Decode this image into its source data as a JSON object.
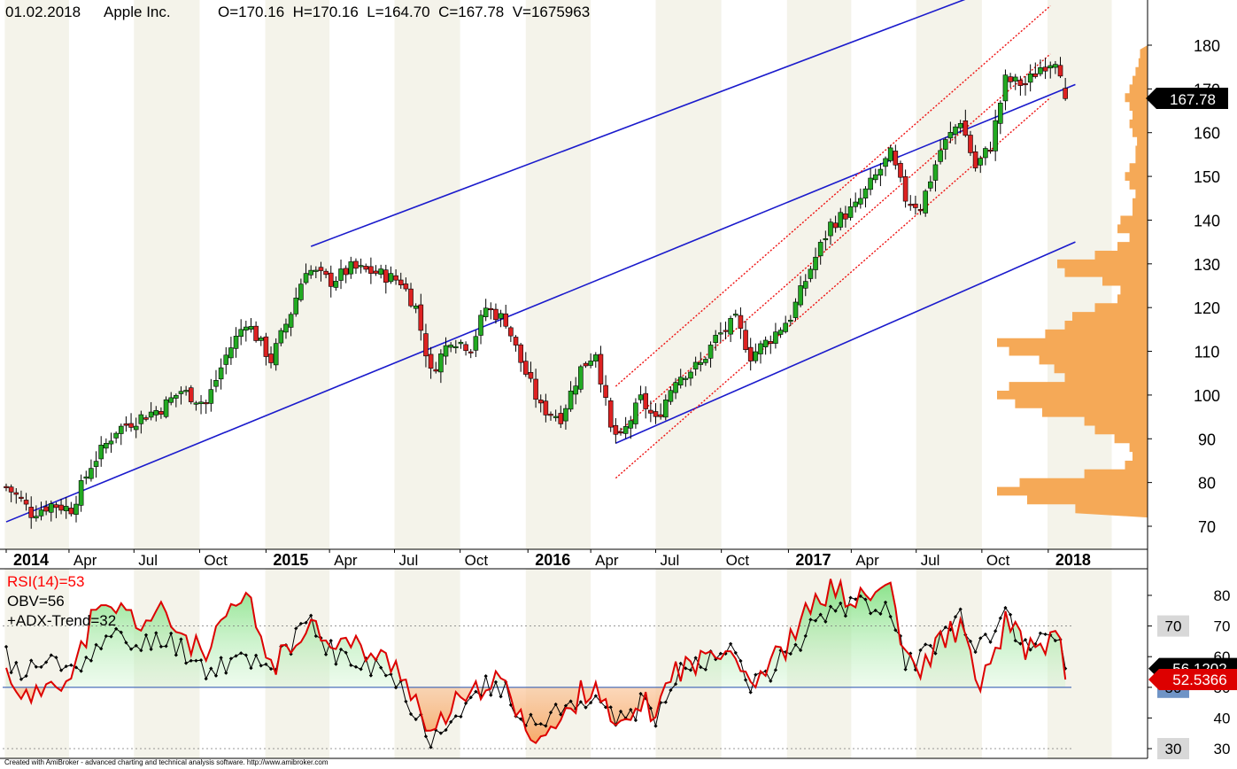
{
  "header": {
    "date": "01.02.2018",
    "symbol": "Apple Inc.",
    "ohlcv": "O=170.16  H=170.16  L=164.70  C=167.78  V=1675963"
  },
  "footer": {
    "credit": "Created with AmiBroker - advanced charting and technical analysis software. http://www.amibroker.com"
  },
  "colors": {
    "up_candle": "#22aa22",
    "down_candle": "#dd2222",
    "channel_line": "#1a1acc",
    "regression_channel": "#ee1111",
    "volume_profile": "#f5a957",
    "rsi_line": "#dd0000",
    "obv_line": "#000000",
    "band_alt": "#f4f3ea"
  },
  "chart_data": [
    {
      "type": "candlestick",
      "title": "Apple Inc.",
      "timeframe": "weekly",
      "x_start": "2014-01-03",
      "x_end": "2018-02-01",
      "ylim": [
        65,
        185
      ],
      "y_ticks": [
        70,
        80,
        90,
        100,
        110,
        120,
        130,
        140,
        150,
        160,
        170,
        180
      ],
      "x_tick_labels": [
        {
          "label": "2014",
          "date": "2014-01-03",
          "bold": true
        },
        {
          "label": "Apr",
          "date": "2014-04-01",
          "bold": false
        },
        {
          "label": "Jul",
          "date": "2014-07-01",
          "bold": false
        },
        {
          "label": "Oct",
          "date": "2014-10-01",
          "bold": false
        },
        {
          "label": "2015",
          "date": "2015-01-02",
          "bold": true
        },
        {
          "label": "Apr",
          "date": "2015-04-01",
          "bold": false
        },
        {
          "label": "Jul",
          "date": "2015-07-01",
          "bold": false
        },
        {
          "label": "Oct",
          "date": "2015-10-01",
          "bold": false
        },
        {
          "label": "2016",
          "date": "2016-01-04",
          "bold": true
        },
        {
          "label": "Apr",
          "date": "2016-04-01",
          "bold": false
        },
        {
          "label": "Jul",
          "date": "2016-07-01",
          "bold": false
        },
        {
          "label": "Oct",
          "date": "2016-10-01",
          "bold": false
        },
        {
          "label": "2017",
          "date": "2017-01-03",
          "bold": true
        },
        {
          "label": "Apr",
          "date": "2017-04-01",
          "bold": false
        },
        {
          "label": "Jul",
          "date": "2017-07-01",
          "bold": false
        },
        {
          "label": "Oct",
          "date": "2017-10-01",
          "bold": false
        },
        {
          "label": "2018",
          "date": "2018-01-02",
          "bold": true
        }
      ],
      "last_price_label": "167.78",
      "close_anchors": [
        [
          "2014-01-03",
          79
        ],
        [
          "2014-01-24",
          76
        ],
        [
          "2014-02-07",
          73
        ],
        [
          "2014-03-07",
          75
        ],
        [
          "2014-04-04",
          74
        ],
        [
          "2014-05-02",
          84
        ],
        [
          "2014-06-06",
          92
        ],
        [
          "2014-07-11",
          95
        ],
        [
          "2014-08-08",
          97
        ],
        [
          "2014-09-05",
          101
        ],
        [
          "2014-10-10",
          98
        ],
        [
          "2014-11-07",
          109
        ],
        [
          "2014-12-05",
          117
        ],
        [
          "2015-01-09",
          108
        ],
        [
          "2015-02-06",
          119
        ],
        [
          "2015-02-27",
          129
        ],
        [
          "2015-04-03",
          126
        ],
        [
          "2015-05-01",
          129
        ],
        [
          "2015-06-05",
          128
        ],
        [
          "2015-07-10",
          126
        ],
        [
          "2015-07-31",
          120
        ],
        [
          "2015-08-21",
          105
        ],
        [
          "2015-09-18",
          113
        ],
        [
          "2015-10-16",
          111
        ],
        [
          "2015-11-06",
          120
        ],
        [
          "2015-12-04",
          117
        ],
        [
          "2015-12-24",
          108
        ],
        [
          "2016-01-22",
          97
        ],
        [
          "2016-02-19",
          95
        ],
        [
          "2016-03-18",
          106
        ],
        [
          "2016-04-08",
          110
        ],
        [
          "2016-04-29",
          92
        ],
        [
          "2016-05-13",
          90
        ],
        [
          "2016-06-10",
          99
        ],
        [
          "2016-07-01",
          94
        ],
        [
          "2016-07-29",
          104
        ],
        [
          "2016-09-02",
          107
        ],
        [
          "2016-09-23",
          113
        ],
        [
          "2016-10-21",
          117
        ],
        [
          "2016-11-11",
          109
        ],
        [
          "2016-12-09",
          113
        ],
        [
          "2017-01-06",
          118
        ],
        [
          "2017-02-03",
          129
        ],
        [
          "2017-03-03",
          139
        ],
        [
          "2017-04-07",
          143
        ],
        [
          "2017-05-05",
          150
        ],
        [
          "2017-05-26",
          155
        ],
        [
          "2017-06-16",
          145
        ],
        [
          "2017-07-07",
          143
        ],
        [
          "2017-08-04",
          156
        ],
        [
          "2017-09-01",
          163
        ],
        [
          "2017-09-22",
          152
        ],
        [
          "2017-10-13",
          157
        ],
        [
          "2017-11-03",
          172
        ],
        [
          "2017-12-01",
          171
        ],
        [
          "2017-12-22",
          175
        ],
        [
          "2018-01-12",
          177
        ],
        [
          "2018-01-26",
          172
        ],
        [
          "2018-02-01",
          167.78
        ]
      ],
      "lines": [
        {
          "name": "upper-channel",
          "style": "solid",
          "from": [
            "2015-03-06",
            134
          ],
          "to": [
            "2018-02-09",
            200
          ]
        },
        {
          "name": "middle-channel",
          "style": "solid",
          "from": [
            "2014-01-03",
            71
          ],
          "to": [
            "2018-02-09",
            171
          ]
        },
        {
          "name": "lower-channel",
          "style": "solid",
          "from": [
            "2016-05-06",
            89
          ],
          "to": [
            "2018-02-09",
            135
          ]
        },
        {
          "name": "regression-upper",
          "style": "dotted",
          "from": [
            "2016-05-06",
            102
          ],
          "to": [
            "2018-01-05",
            189
          ]
        },
        {
          "name": "regression-middle",
          "style": "dotted",
          "from": [
            "2016-05-06",
            91
          ],
          "to": [
            "2018-01-05",
            178
          ]
        },
        {
          "name": "regression-lower",
          "style": "dotted",
          "from": [
            "2016-05-06",
            81
          ],
          "to": [
            "2018-01-05",
            168
          ]
        }
      ],
      "volume_profile": {
        "orientation": "horizontal-right",
        "price_levels": [
          74,
          76,
          78,
          80,
          82,
          84,
          86,
          88,
          90,
          92,
          94,
          96,
          98,
          100,
          102,
          104,
          106,
          108,
          110,
          112,
          114,
          116,
          118,
          120,
          122,
          124,
          126,
          128,
          130,
          132,
          134,
          136,
          138,
          140,
          142,
          144,
          146,
          148,
          150,
          152,
          154,
          156,
          158,
          160,
          162,
          164,
          166,
          168,
          170,
          172,
          174,
          176,
          178
        ],
        "relative_volume": [
          0.48,
          0.8,
          1.0,
          0.85,
          0.42,
          0.15,
          0.1,
          0.12,
          0.22,
          0.35,
          0.42,
          0.7,
          0.88,
          1.0,
          0.92,
          0.55,
          0.62,
          0.72,
          0.92,
          1.0,
          0.68,
          0.55,
          0.5,
          0.35,
          0.2,
          0.18,
          0.3,
          0.55,
          0.6,
          0.35,
          0.2,
          0.12,
          0.2,
          0.18,
          0.1,
          0.1,
          0.08,
          0.12,
          0.15,
          0.12,
          0.08,
          0.08,
          0.07,
          0.1,
          0.12,
          0.1,
          0.12,
          0.15,
          0.12,
          0.1,
          0.08,
          0.06,
          0.05
        ]
      }
    },
    {
      "type": "line",
      "ylim": [
        27,
        88
      ],
      "y_ticks": [
        30,
        40,
        50,
        60,
        70,
        80
      ],
      "level_boxes": [
        {
          "label": "70",
          "value": 70,
          "bg": "#d8d8d8",
          "fg": "#000000"
        },
        {
          "label": "50",
          "value": 50,
          "bg": "#6f94c6",
          "fg": "#000000"
        },
        {
          "label": "30",
          "value": 30,
          "bg": "#d8d8d8",
          "fg": "#000000"
        }
      ],
      "value_tags": [
        {
          "label": "56.1202",
          "value": 56.1202,
          "bg": "#000000",
          "fg": "#ffffff"
        },
        {
          "label": "52.5366",
          "value": 52.5366,
          "bg": "#dd0000",
          "fg": "#ffffff"
        }
      ],
      "legend": [
        {
          "text": "RSI(14)=53",
          "color": "#ff0000"
        },
        {
          "text": "OBV=56",
          "color": "#000000"
        },
        {
          "text": "+ADX-Trend=32",
          "color": "#000000"
        }
      ],
      "series": [
        {
          "name": "RSI(14)",
          "anchors": [
            [
              "2014-01-03",
              55
            ],
            [
              "2014-01-24",
              49
            ],
            [
              "2014-02-07",
              44
            ],
            [
              "2014-03-07",
              54
            ],
            [
              "2014-04-04",
              52
            ],
            [
              "2014-05-02",
              72
            ],
            [
              "2014-06-06",
              76
            ],
            [
              "2014-07-11",
              71
            ],
            [
              "2014-08-08",
              74
            ],
            [
              "2014-09-05",
              68
            ],
            [
              "2014-10-10",
              59
            ],
            [
              "2014-11-07",
              72
            ],
            [
              "2014-12-05",
              80
            ],
            [
              "2015-01-09",
              57
            ],
            [
              "2015-02-06",
              62
            ],
            [
              "2015-02-27",
              72
            ],
            [
              "2015-04-03",
              66
            ],
            [
              "2015-05-01",
              64
            ],
            [
              "2015-06-05",
              60
            ],
            [
              "2015-07-10",
              56
            ],
            [
              "2015-07-31",
              46
            ],
            [
              "2015-08-21",
              32
            ],
            [
              "2015-09-18",
              44
            ],
            [
              "2015-10-16",
              45
            ],
            [
              "2015-11-06",
              53
            ],
            [
              "2015-12-04",
              50
            ],
            [
              "2015-12-24",
              39
            ],
            [
              "2016-01-22",
              34
            ],
            [
              "2016-02-19",
              38
            ],
            [
              "2016-03-18",
              48
            ],
            [
              "2016-04-08",
              52
            ],
            [
              "2016-04-29",
              38
            ],
            [
              "2016-05-13",
              35
            ],
            [
              "2016-06-10",
              45
            ],
            [
              "2016-07-01",
              42
            ],
            [
              "2016-07-29",
              56
            ],
            [
              "2016-09-02",
              58
            ],
            [
              "2016-09-23",
              64
            ],
            [
              "2016-10-21",
              62
            ],
            [
              "2016-11-11",
              52
            ],
            [
              "2016-12-09",
              58
            ],
            [
              "2017-01-06",
              65
            ],
            [
              "2017-02-03",
              76
            ],
            [
              "2017-03-03",
              82
            ],
            [
              "2017-04-07",
              78
            ],
            [
              "2017-05-05",
              80
            ],
            [
              "2017-05-26",
              84
            ],
            [
              "2017-06-16",
              58
            ],
            [
              "2017-07-07",
              55
            ],
            [
              "2017-08-04",
              66
            ],
            [
              "2017-09-01",
              70
            ],
            [
              "2017-09-22",
              52
            ],
            [
              "2017-10-13",
              55
            ],
            [
              "2017-11-03",
              72
            ],
            [
              "2017-12-01",
              62
            ],
            [
              "2017-12-22",
              64
            ],
            [
              "2018-01-12",
              66
            ],
            [
              "2018-01-26",
              58
            ],
            [
              "2018-02-01",
              52.5366
            ]
          ]
        },
        {
          "name": "OBV",
          "anchors": [
            [
              "2014-01-03",
              60
            ],
            [
              "2014-01-24",
              54
            ],
            [
              "2014-02-07",
              56
            ],
            [
              "2014-03-07",
              58
            ],
            [
              "2014-04-04",
              56
            ],
            [
              "2014-05-02",
              62
            ],
            [
              "2014-06-06",
              66
            ],
            [
              "2014-07-11",
              63
            ],
            [
              "2014-08-08",
              67
            ],
            [
              "2014-09-05",
              63
            ],
            [
              "2014-10-10",
              56
            ],
            [
              "2014-11-07",
              58
            ],
            [
              "2014-12-05",
              60
            ],
            [
              "2015-01-09",
              58
            ],
            [
              "2015-02-06",
              62
            ],
            [
              "2015-02-27",
              72
            ],
            [
              "2015-04-03",
              62
            ],
            [
              "2015-05-01",
              58
            ],
            [
              "2015-06-05",
              56
            ],
            [
              "2015-07-10",
              50
            ],
            [
              "2015-07-31",
              42
            ],
            [
              "2015-08-21",
              33
            ],
            [
              "2015-09-18",
              42
            ],
            [
              "2015-10-16",
              45
            ],
            [
              "2015-11-06",
              50
            ],
            [
              "2015-12-04",
              48
            ],
            [
              "2015-12-24",
              42
            ],
            [
              "2016-01-22",
              38
            ],
            [
              "2016-02-19",
              42
            ],
            [
              "2016-03-18",
              46
            ],
            [
              "2016-04-08",
              48
            ],
            [
              "2016-04-29",
              40
            ],
            [
              "2016-05-13",
              40
            ],
            [
              "2016-06-10",
              44
            ],
            [
              "2016-07-01",
              40
            ],
            [
              "2016-07-29",
              55
            ],
            [
              "2016-09-02",
              58
            ],
            [
              "2016-09-23",
              63
            ],
            [
              "2016-10-21",
              60
            ],
            [
              "2016-11-11",
              50
            ],
            [
              "2016-12-09",
              56
            ],
            [
              "2017-01-06",
              62
            ],
            [
              "2017-02-03",
              70
            ],
            [
              "2017-03-03",
              77
            ],
            [
              "2017-04-07",
              76
            ],
            [
              "2017-05-05",
              78
            ],
            [
              "2017-05-26",
              76
            ],
            [
              "2017-06-16",
              58
            ],
            [
              "2017-07-07",
              60
            ],
            [
              "2017-08-04",
              66
            ],
            [
              "2017-09-01",
              72
            ],
            [
              "2017-09-22",
              62
            ],
            [
              "2017-10-13",
              64
            ],
            [
              "2017-11-03",
              74
            ],
            [
              "2017-12-01",
              64
            ],
            [
              "2017-12-22",
              66
            ],
            [
              "2018-01-12",
              68
            ],
            [
              "2018-01-26",
              63
            ],
            [
              "2018-02-01",
              56.1202
            ]
          ]
        }
      ]
    }
  ]
}
